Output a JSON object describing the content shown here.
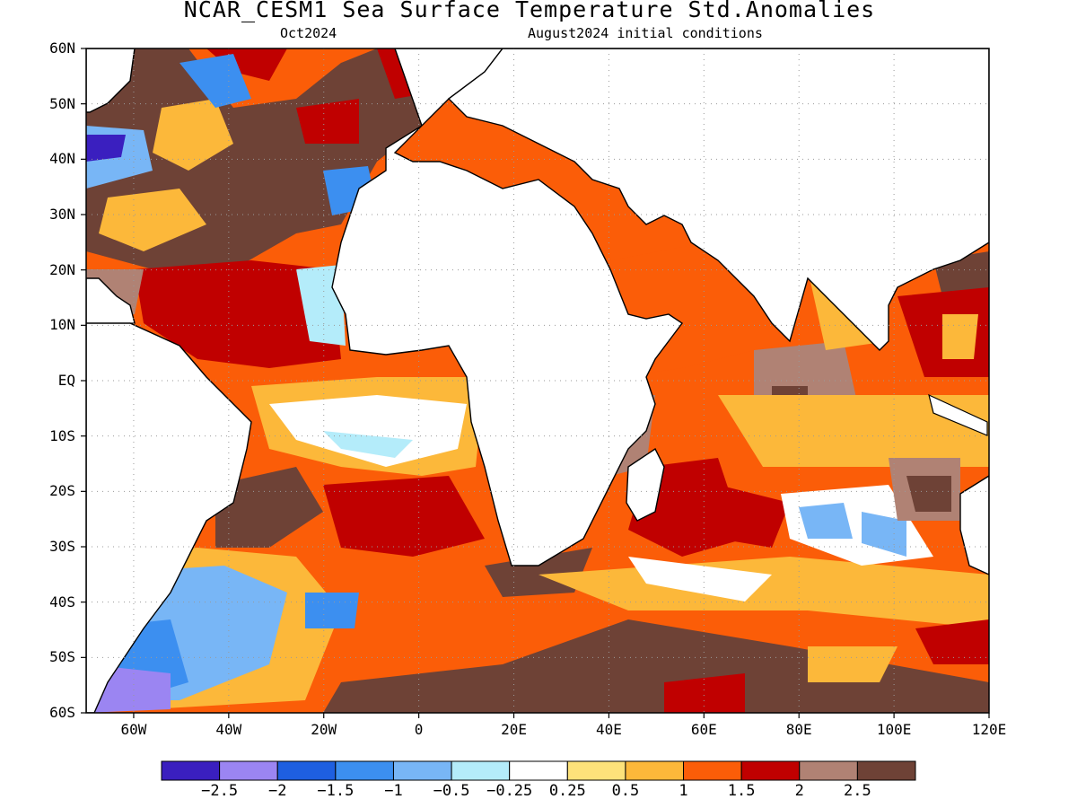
{
  "header": {
    "title": "NCAR_CESM1 Sea Surface Temperature Std.Anomalies",
    "subtitle_left": "Oct2024",
    "subtitle_right": "August2024 initial conditions"
  },
  "axes": {
    "lat_labels": [
      "60N",
      "50N",
      "40N",
      "30N",
      "20N",
      "10N",
      "EQ",
      "10S",
      "20S",
      "30S",
      "40S",
      "50S",
      "60S"
    ],
    "lon_labels": [
      "60W",
      "40W",
      "20W",
      "0",
      "20E",
      "40E",
      "60E",
      "80E",
      "100E",
      "120E"
    ]
  },
  "colorbar": {
    "colors": [
      "#3a1fbf",
      "#9b85f2",
      "#1e5fe0",
      "#3c8ff0",
      "#78b6f6",
      "#b4ecfa",
      "#ffffff",
      "#fde27a",
      "#fcb83a",
      "#fb5d08",
      "#c00000",
      "#b08274",
      "#6e4236"
    ],
    "labels": [
      "−2.5",
      "−2",
      "−1.5",
      "−1",
      "−0.5",
      "−0.25",
      "0.25",
      "0.5",
      "1",
      "1.5",
      "2",
      "2.5"
    ]
  },
  "map": {
    "land_color": "#ffffff",
    "grid": "dotted",
    "extent": {
      "lon": [
        -70,
        120
      ],
      "lat": [
        -60,
        60
      ]
    }
  }
}
